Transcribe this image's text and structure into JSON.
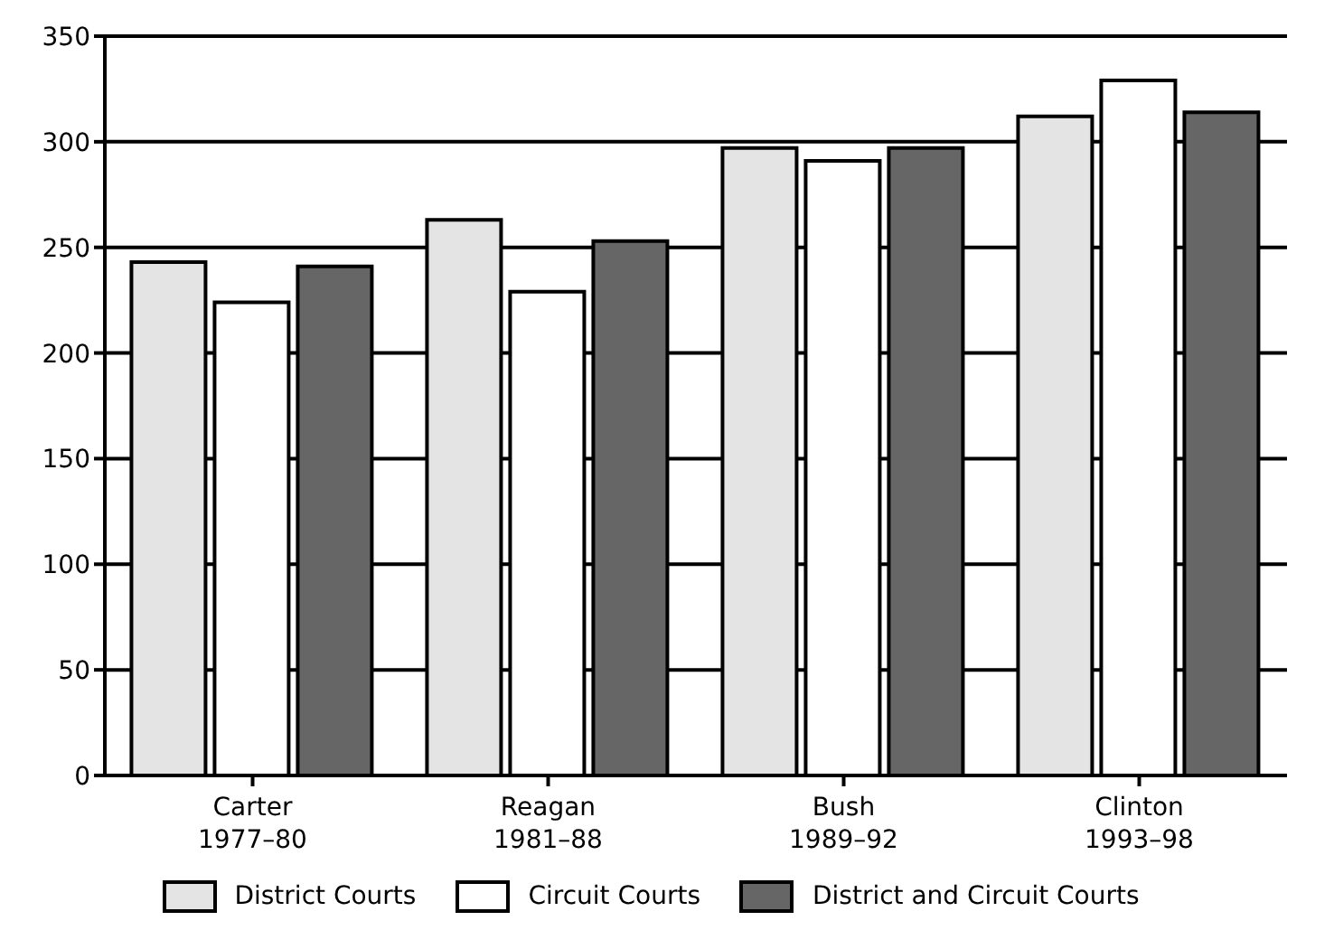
{
  "chart_data": {
    "type": "bar",
    "categories": [
      "Carter\n1977–80",
      "Reagan\n1981–88",
      "Bush\n1989–92",
      "Clinton\n1993–98"
    ],
    "series": [
      {
        "name": "District Courts",
        "color": "#e4e4e4",
        "values": [
          243,
          263,
          297,
          312
        ]
      },
      {
        "name": "Circuit Courts",
        "color": "#ffffff",
        "values": [
          224,
          229,
          291,
          329
        ]
      },
      {
        "name": "District and Circuit Courts",
        "color": "#666666",
        "values": [
          241,
          253,
          297,
          314
        ]
      }
    ],
    "ylim": [
      0,
      350
    ],
    "yticks": [
      0,
      50,
      100,
      150,
      200,
      250,
      300,
      350
    ],
    "grid": "y",
    "legend": "bottom"
  }
}
